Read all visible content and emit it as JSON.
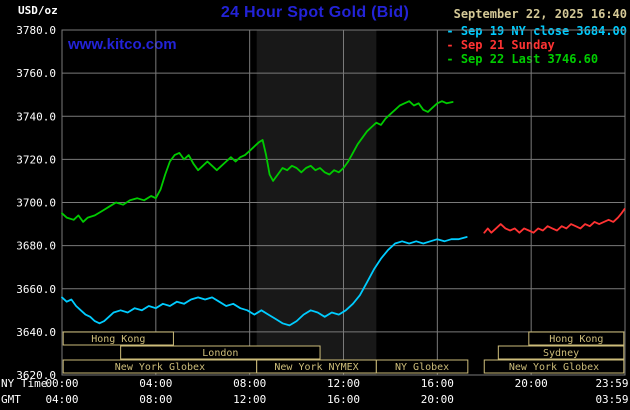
{
  "header": {
    "unit_label": "USD/oz",
    "title": "24 Hour Spot Gold (Bid)",
    "datetime": "September 22, 2025 16:40",
    "watermark": "www.kitco.com"
  },
  "legend": [
    {
      "label": "Sep 19 NY close 3684.00",
      "color": "#00ccff"
    },
    {
      "label": "Sep 21 Sunday",
      "color": "#ff3333"
    },
    {
      "label": "Sep 22 Last 3746.60",
      "color": "#00cc00"
    }
  ],
  "axes": {
    "ny_time_label": "NY Time",
    "gmt_label": "GMT",
    "x_gridline_hours": [
      4,
      8,
      12,
      16,
      20
    ],
    "x_ticks_ny": [
      {
        "hour": 0,
        "label": "00:00"
      },
      {
        "hour": 4,
        "label": "04:00"
      },
      {
        "hour": 8,
        "label": "08:00"
      },
      {
        "hour": 12,
        "label": "12:00"
      },
      {
        "hour": 16,
        "label": "16:00"
      },
      {
        "hour": 20,
        "label": "20:00"
      },
      {
        "hour": 23.98,
        "label": "23:59"
      }
    ],
    "x_ticks_gmt": [
      {
        "hour": 0,
        "label": "04:00"
      },
      {
        "hour": 4,
        "label": "08:00"
      },
      {
        "hour": 8,
        "label": "12:00"
      },
      {
        "hour": 12,
        "label": "16:00"
      },
      {
        "hour": 16,
        "label": "20:00"
      },
      {
        "hour": 23.98,
        "label": "03:59"
      }
    ],
    "y_ticks": [
      {
        "value": 3780,
        "label": "3780.0"
      },
      {
        "value": 3760,
        "label": "3760.0"
      },
      {
        "value": 3740,
        "label": "3740.0"
      },
      {
        "value": 3720,
        "label": "3720.0"
      },
      {
        "value": 3700,
        "label": "3700.0"
      },
      {
        "value": 3680,
        "label": "3680.0"
      },
      {
        "value": 3660,
        "label": "3660.0"
      },
      {
        "value": 3640,
        "label": "3640.0"
      },
      {
        "value": 3620,
        "label": "3620.0"
      }
    ]
  },
  "sessions": [
    {
      "label": "Hong Kong",
      "row": 0,
      "start": 0.05,
      "end": 4.75
    },
    {
      "label": "Hong Kong",
      "row": 0,
      "start": 19.9,
      "end": 23.95
    },
    {
      "label": "London",
      "row": 1,
      "start": 2.5,
      "end": 11.0
    },
    {
      "label": "Sydney",
      "row": 1,
      "start": 18.6,
      "end": 23.95
    },
    {
      "label": "New York Globex",
      "row": 2,
      "start": 0.05,
      "end": 8.3
    },
    {
      "label": "New York NYMEX",
      "row": 2,
      "start": 8.3,
      "end": 13.4
    },
    {
      "label": "NY Globex",
      "row": 2,
      "start": 13.4,
      "end": 17.3
    },
    {
      "label": "New York Globex",
      "row": 2,
      "start": 18.0,
      "end": 23.95
    }
  ],
  "colors": {
    "background": "#000000",
    "grid": "#7a7a7a",
    "axis_text": "#ffffff",
    "title": "#2323d7",
    "watermark": "#2323d7",
    "datetime": "#d4c896",
    "session": "#cdbd7a",
    "band": "#181818"
  },
  "chart_data": {
    "type": "line",
    "title": "24 Hour Spot Gold (Bid)",
    "xlabel": "NY Time",
    "ylabel": "USD/oz",
    "xlim": [
      0,
      24
    ],
    "ylim": [
      3620,
      3780
    ],
    "grid": true,
    "legend_position": "top-right",
    "shaded_band": {
      "label": "New York NYMEX session",
      "start_hour": 8.3,
      "end_hour": 13.4
    },
    "series": [
      {
        "name": "Sep 19 NY close 3684.00",
        "color": "#00ccff",
        "points": [
          [
            0,
            3656
          ],
          [
            0.2,
            3654
          ],
          [
            0.4,
            3655
          ],
          [
            0.6,
            3652
          ],
          [
            0.8,
            3650
          ],
          [
            1.0,
            3648
          ],
          [
            1.2,
            3647
          ],
          [
            1.4,
            3645
          ],
          [
            1.6,
            3644
          ],
          [
            1.8,
            3645
          ],
          [
            2.0,
            3647
          ],
          [
            2.2,
            3649
          ],
          [
            2.5,
            3650
          ],
          [
            2.8,
            3649
          ],
          [
            3.1,
            3651
          ],
          [
            3.4,
            3650
          ],
          [
            3.7,
            3652
          ],
          [
            4.0,
            3651
          ],
          [
            4.3,
            3653
          ],
          [
            4.6,
            3652
          ],
          [
            4.9,
            3654
          ],
          [
            5.2,
            3653
          ],
          [
            5.5,
            3655
          ],
          [
            5.8,
            3656
          ],
          [
            6.1,
            3655
          ],
          [
            6.4,
            3656
          ],
          [
            6.7,
            3654
          ],
          [
            7.0,
            3652
          ],
          [
            7.3,
            3653
          ],
          [
            7.6,
            3651
          ],
          [
            7.9,
            3650
          ],
          [
            8.2,
            3648
          ],
          [
            8.5,
            3650
          ],
          [
            8.8,
            3648
          ],
          [
            9.1,
            3646
          ],
          [
            9.4,
            3644
          ],
          [
            9.7,
            3643
          ],
          [
            10.0,
            3645
          ],
          [
            10.3,
            3648
          ],
          [
            10.6,
            3650
          ],
          [
            10.9,
            3649
          ],
          [
            11.2,
            3647
          ],
          [
            11.5,
            3649
          ],
          [
            11.8,
            3648
          ],
          [
            12.1,
            3650
          ],
          [
            12.4,
            3653
          ],
          [
            12.7,
            3657
          ],
          [
            13.0,
            3663
          ],
          [
            13.3,
            3669
          ],
          [
            13.6,
            3674
          ],
          [
            13.9,
            3678
          ],
          [
            14.2,
            3681
          ],
          [
            14.5,
            3682
          ],
          [
            14.8,
            3681
          ],
          [
            15.1,
            3682
          ],
          [
            15.4,
            3681
          ],
          [
            15.7,
            3682
          ],
          [
            16.0,
            3683
          ],
          [
            16.3,
            3682
          ],
          [
            16.6,
            3683
          ],
          [
            16.9,
            3683
          ],
          [
            17.25,
            3684
          ]
        ]
      },
      {
        "name": "Sep 21 Sunday",
        "color": "#ff3333",
        "points": [
          [
            18.0,
            3686
          ],
          [
            18.15,
            3688
          ],
          [
            18.3,
            3686
          ],
          [
            18.5,
            3688
          ],
          [
            18.7,
            3690
          ],
          [
            18.9,
            3688
          ],
          [
            19.1,
            3687
          ],
          [
            19.3,
            3688
          ],
          [
            19.5,
            3686
          ],
          [
            19.7,
            3688
          ],
          [
            19.9,
            3687
          ],
          [
            20.1,
            3686
          ],
          [
            20.3,
            3688
          ],
          [
            20.5,
            3687
          ],
          [
            20.7,
            3689
          ],
          [
            20.9,
            3688
          ],
          [
            21.1,
            3687
          ],
          [
            21.3,
            3689
          ],
          [
            21.5,
            3688
          ],
          [
            21.7,
            3690
          ],
          [
            21.9,
            3689
          ],
          [
            22.1,
            3688
          ],
          [
            22.3,
            3690
          ],
          [
            22.5,
            3689
          ],
          [
            22.7,
            3691
          ],
          [
            22.9,
            3690
          ],
          [
            23.1,
            3691
          ],
          [
            23.3,
            3692
          ],
          [
            23.5,
            3691
          ],
          [
            23.7,
            3693
          ],
          [
            23.85,
            3695
          ],
          [
            23.98,
            3697
          ]
        ]
      },
      {
        "name": "Sep 22 Last 3746.60",
        "color": "#00cc00",
        "points": [
          [
            0,
            3695
          ],
          [
            0.2,
            3693
          ],
          [
            0.5,
            3692
          ],
          [
            0.7,
            3694
          ],
          [
            0.9,
            3691
          ],
          [
            1.1,
            3693
          ],
          [
            1.4,
            3694
          ],
          [
            1.7,
            3696
          ],
          [
            2.0,
            3698
          ],
          [
            2.3,
            3700
          ],
          [
            2.6,
            3699
          ],
          [
            2.9,
            3701
          ],
          [
            3.2,
            3702
          ],
          [
            3.5,
            3701
          ],
          [
            3.8,
            3703
          ],
          [
            4.0,
            3702
          ],
          [
            4.2,
            3706
          ],
          [
            4.4,
            3713
          ],
          [
            4.6,
            3719
          ],
          [
            4.8,
            3722
          ],
          [
            5.0,
            3723
          ],
          [
            5.2,
            3720
          ],
          [
            5.4,
            3722
          ],
          [
            5.6,
            3718
          ],
          [
            5.8,
            3715
          ],
          [
            6.0,
            3717
          ],
          [
            6.2,
            3719
          ],
          [
            6.4,
            3717
          ],
          [
            6.6,
            3715
          ],
          [
            6.8,
            3717
          ],
          [
            7.0,
            3719
          ],
          [
            7.2,
            3721
          ],
          [
            7.4,
            3719
          ],
          [
            7.6,
            3721
          ],
          [
            7.8,
            3722
          ],
          [
            8.0,
            3724
          ],
          [
            8.2,
            3726
          ],
          [
            8.4,
            3728
          ],
          [
            8.55,
            3729
          ],
          [
            8.7,
            3722
          ],
          [
            8.85,
            3713
          ],
          [
            9.0,
            3710
          ],
          [
            9.2,
            3713
          ],
          [
            9.4,
            3716
          ],
          [
            9.6,
            3715
          ],
          [
            9.8,
            3717
          ],
          [
            10.0,
            3716
          ],
          [
            10.2,
            3714
          ],
          [
            10.4,
            3716
          ],
          [
            10.6,
            3717
          ],
          [
            10.8,
            3715
          ],
          [
            11.0,
            3716
          ],
          [
            11.2,
            3714
          ],
          [
            11.4,
            3713
          ],
          [
            11.6,
            3715
          ],
          [
            11.8,
            3714
          ],
          [
            12.0,
            3716
          ],
          [
            12.2,
            3719
          ],
          [
            12.4,
            3723
          ],
          [
            12.6,
            3727
          ],
          [
            12.8,
            3730
          ],
          [
            13.0,
            3733
          ],
          [
            13.2,
            3735
          ],
          [
            13.4,
            3737
          ],
          [
            13.6,
            3736
          ],
          [
            13.8,
            3739
          ],
          [
            14.0,
            3741
          ],
          [
            14.2,
            3743
          ],
          [
            14.4,
            3745
          ],
          [
            14.6,
            3746
          ],
          [
            14.8,
            3747
          ],
          [
            15.0,
            3745
          ],
          [
            15.2,
            3746
          ],
          [
            15.4,
            3743
          ],
          [
            15.6,
            3742
          ],
          [
            15.8,
            3744
          ],
          [
            16.0,
            3746
          ],
          [
            16.2,
            3747
          ],
          [
            16.4,
            3746
          ],
          [
            16.65,
            3746.6
          ]
        ]
      }
    ]
  }
}
